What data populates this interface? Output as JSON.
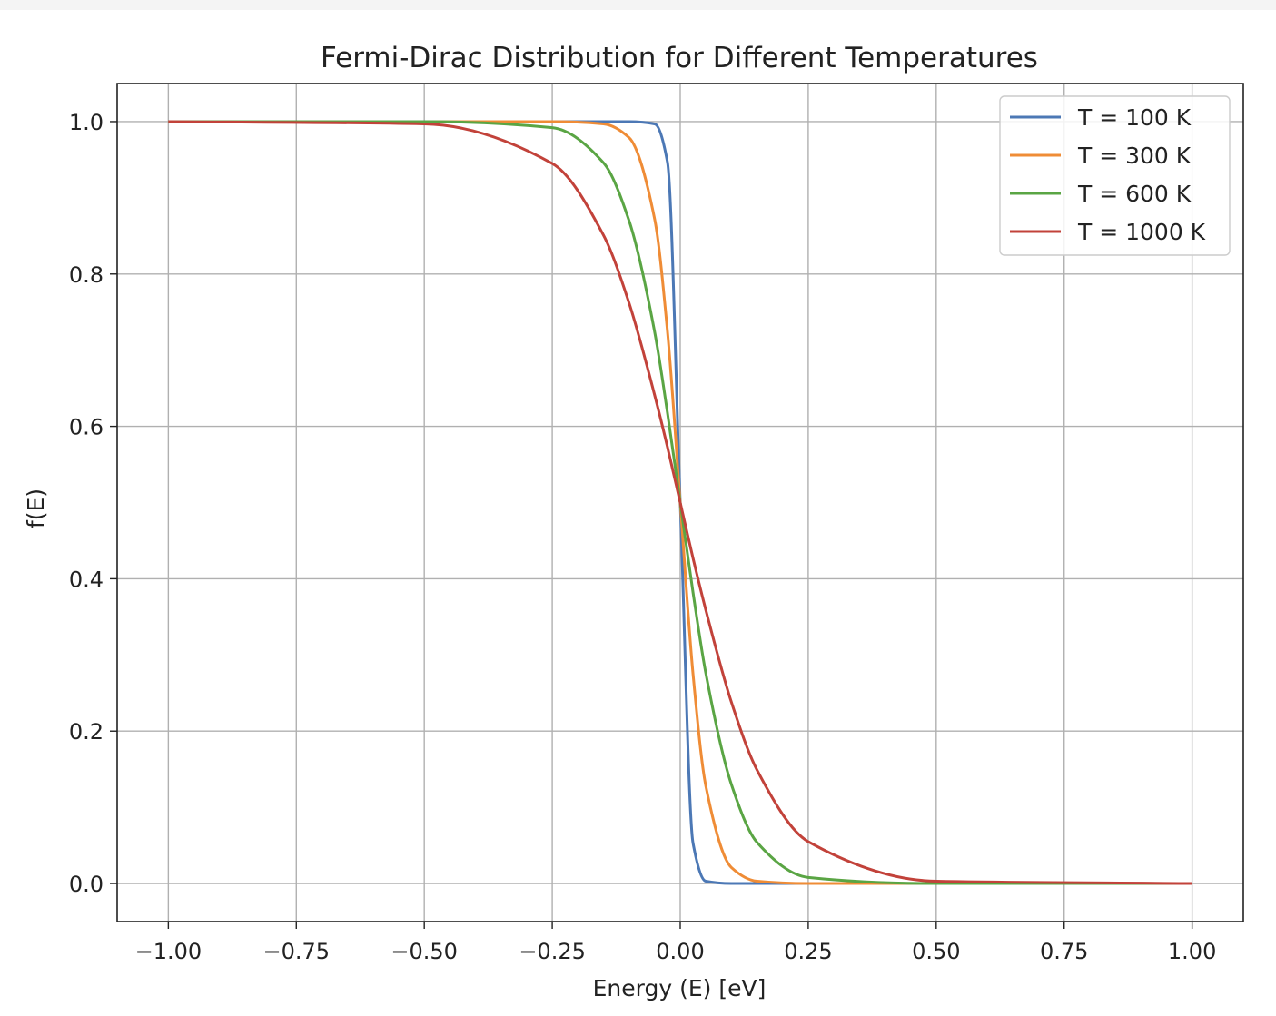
{
  "chart_data": {
    "type": "line",
    "title": "Fermi-Dirac Distribution for Different Temperatures",
    "xlabel": "Energy (E) [eV]",
    "ylabel": "f(E)",
    "xlim": [
      -1.1,
      1.1
    ],
    "ylim": [
      -0.05,
      1.05
    ],
    "x_ticks": [
      -1.0,
      -0.75,
      -0.5,
      -0.25,
      0.0,
      0.25,
      0.5,
      0.75,
      1.0
    ],
    "x_tick_labels": [
      "−1.00",
      "−0.75",
      "−0.50",
      "−0.25",
      "0.00",
      "0.25",
      "0.50",
      "0.75",
      "1.00"
    ],
    "y_ticks": [
      0.0,
      0.2,
      0.4,
      0.6,
      0.8,
      1.0
    ],
    "y_tick_labels": [
      "0.0",
      "0.2",
      "0.4",
      "0.6",
      "0.8",
      "1.0"
    ],
    "grid": true,
    "legend_position": "top-right",
    "x": [
      -1.0,
      -0.5,
      -0.25,
      -0.15,
      -0.1,
      -0.05,
      -0.025,
      0.0,
      0.025,
      0.05,
      0.1,
      0.15,
      0.25,
      0.5,
      1.0
    ],
    "series": [
      {
        "name": "T = 100 K",
        "color": "#4c78b5",
        "values": [
          1.0,
          1.0,
          1.0,
          1.0,
          1.0,
          0.997,
          0.947,
          0.5,
          0.053,
          0.003,
          0.0,
          0.0,
          0.0,
          0.0,
          0.0
        ]
      },
      {
        "name": "T = 300 K",
        "color": "#ef8c36",
        "values": [
          1.0,
          1.0,
          1.0,
          0.997,
          0.979,
          0.872,
          0.725,
          0.5,
          0.275,
          0.128,
          0.021,
          0.003,
          0.0,
          0.0,
          0.0
        ]
      },
      {
        "name": "T = 600 K",
        "color": "#5aa544",
        "values": [
          1.0,
          1.0,
          0.992,
          0.946,
          0.87,
          0.724,
          0.618,
          0.5,
          0.382,
          0.276,
          0.13,
          0.054,
          0.008,
          0.0,
          0.0
        ]
      },
      {
        "name": "T = 1000 K",
        "color": "#c2423a",
        "values": [
          1.0,
          0.997,
          0.945,
          0.851,
          0.762,
          0.641,
          0.573,
          0.5,
          0.427,
          0.359,
          0.238,
          0.149,
          0.055,
          0.003,
          0.0
        ]
      }
    ]
  }
}
